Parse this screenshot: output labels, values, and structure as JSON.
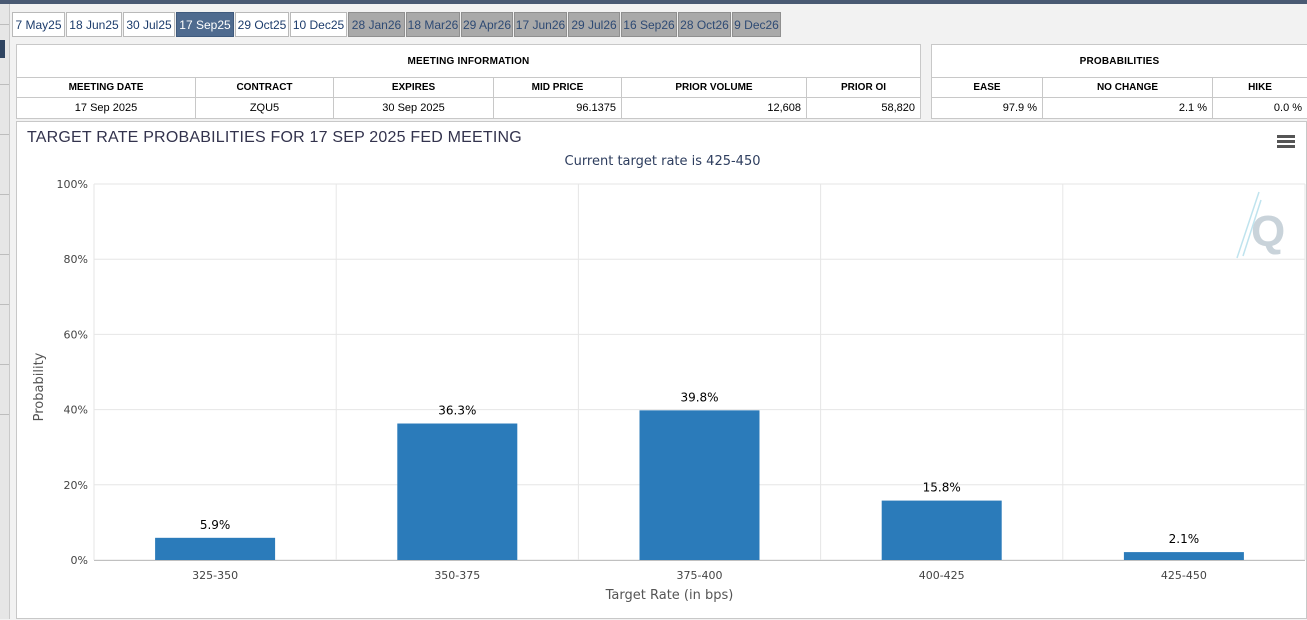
{
  "tabs": [
    {
      "label": "7 May25",
      "state": "normal"
    },
    {
      "label": "18 Jun25",
      "state": "normal"
    },
    {
      "label": "30 Jul25",
      "state": "normal"
    },
    {
      "label": "17 Sep25",
      "state": "active"
    },
    {
      "label": "29 Oct25",
      "state": "normal"
    },
    {
      "label": "10 Dec25",
      "state": "normal"
    },
    {
      "label": "28 Jan26",
      "state": "future"
    },
    {
      "label": "18 Mar26",
      "state": "future"
    },
    {
      "label": "29 Apr26",
      "state": "future"
    },
    {
      "label": "17 Jun26",
      "state": "future"
    },
    {
      "label": "29 Jul26",
      "state": "future"
    },
    {
      "label": "16 Sep26",
      "state": "future"
    },
    {
      "label": "28 Oct26",
      "state": "future"
    },
    {
      "label": "9 Dec26",
      "state": "future"
    }
  ],
  "meeting_info": {
    "header": "MEETING INFORMATION",
    "columns": [
      "MEETING DATE",
      "CONTRACT",
      "EXPIRES",
      "MID PRICE",
      "PRIOR VOLUME",
      "PRIOR OI"
    ],
    "row": [
      "17 Sep 2025",
      "ZQU5",
      "30 Sep 2025",
      "96.1375",
      "12,608",
      "58,820"
    ]
  },
  "probabilities": {
    "header": "PROBABILITIES",
    "columns": [
      "EASE",
      "NO CHANGE",
      "HIKE"
    ],
    "row": [
      "97.9 %",
      "2.1 %",
      "0.0 %"
    ]
  },
  "colors": {
    "bar": "#2b7bba",
    "tab_active": "#4f6b8f",
    "tab_future": "#a9a9a9",
    "title_text": "#33334d"
  },
  "icons": {
    "menu": "hamburger-icon",
    "watermark": "q-logo-icon"
  },
  "chart_data": {
    "type": "bar",
    "title": "TARGET RATE PROBABILITIES FOR 17 SEP 2025 FED MEETING",
    "subtitle": "Current target rate is 425-450",
    "xlabel": "Target Rate (in bps)",
    "ylabel": "Probability",
    "categories": [
      "325-350",
      "350-375",
      "375-400",
      "400-425",
      "425-450"
    ],
    "values": [
      5.9,
      36.3,
      39.8,
      15.8,
      2.1
    ],
    "data_labels": [
      "5.9%",
      "36.3%",
      "39.8%",
      "15.8%",
      "2.1%"
    ],
    "ylim": [
      0,
      100
    ],
    "yticks": [
      0,
      20,
      40,
      60,
      80,
      100
    ],
    "ytick_labels": [
      "0%",
      "20%",
      "40%",
      "60%",
      "80%",
      "100%"
    ],
    "grid": true
  }
}
